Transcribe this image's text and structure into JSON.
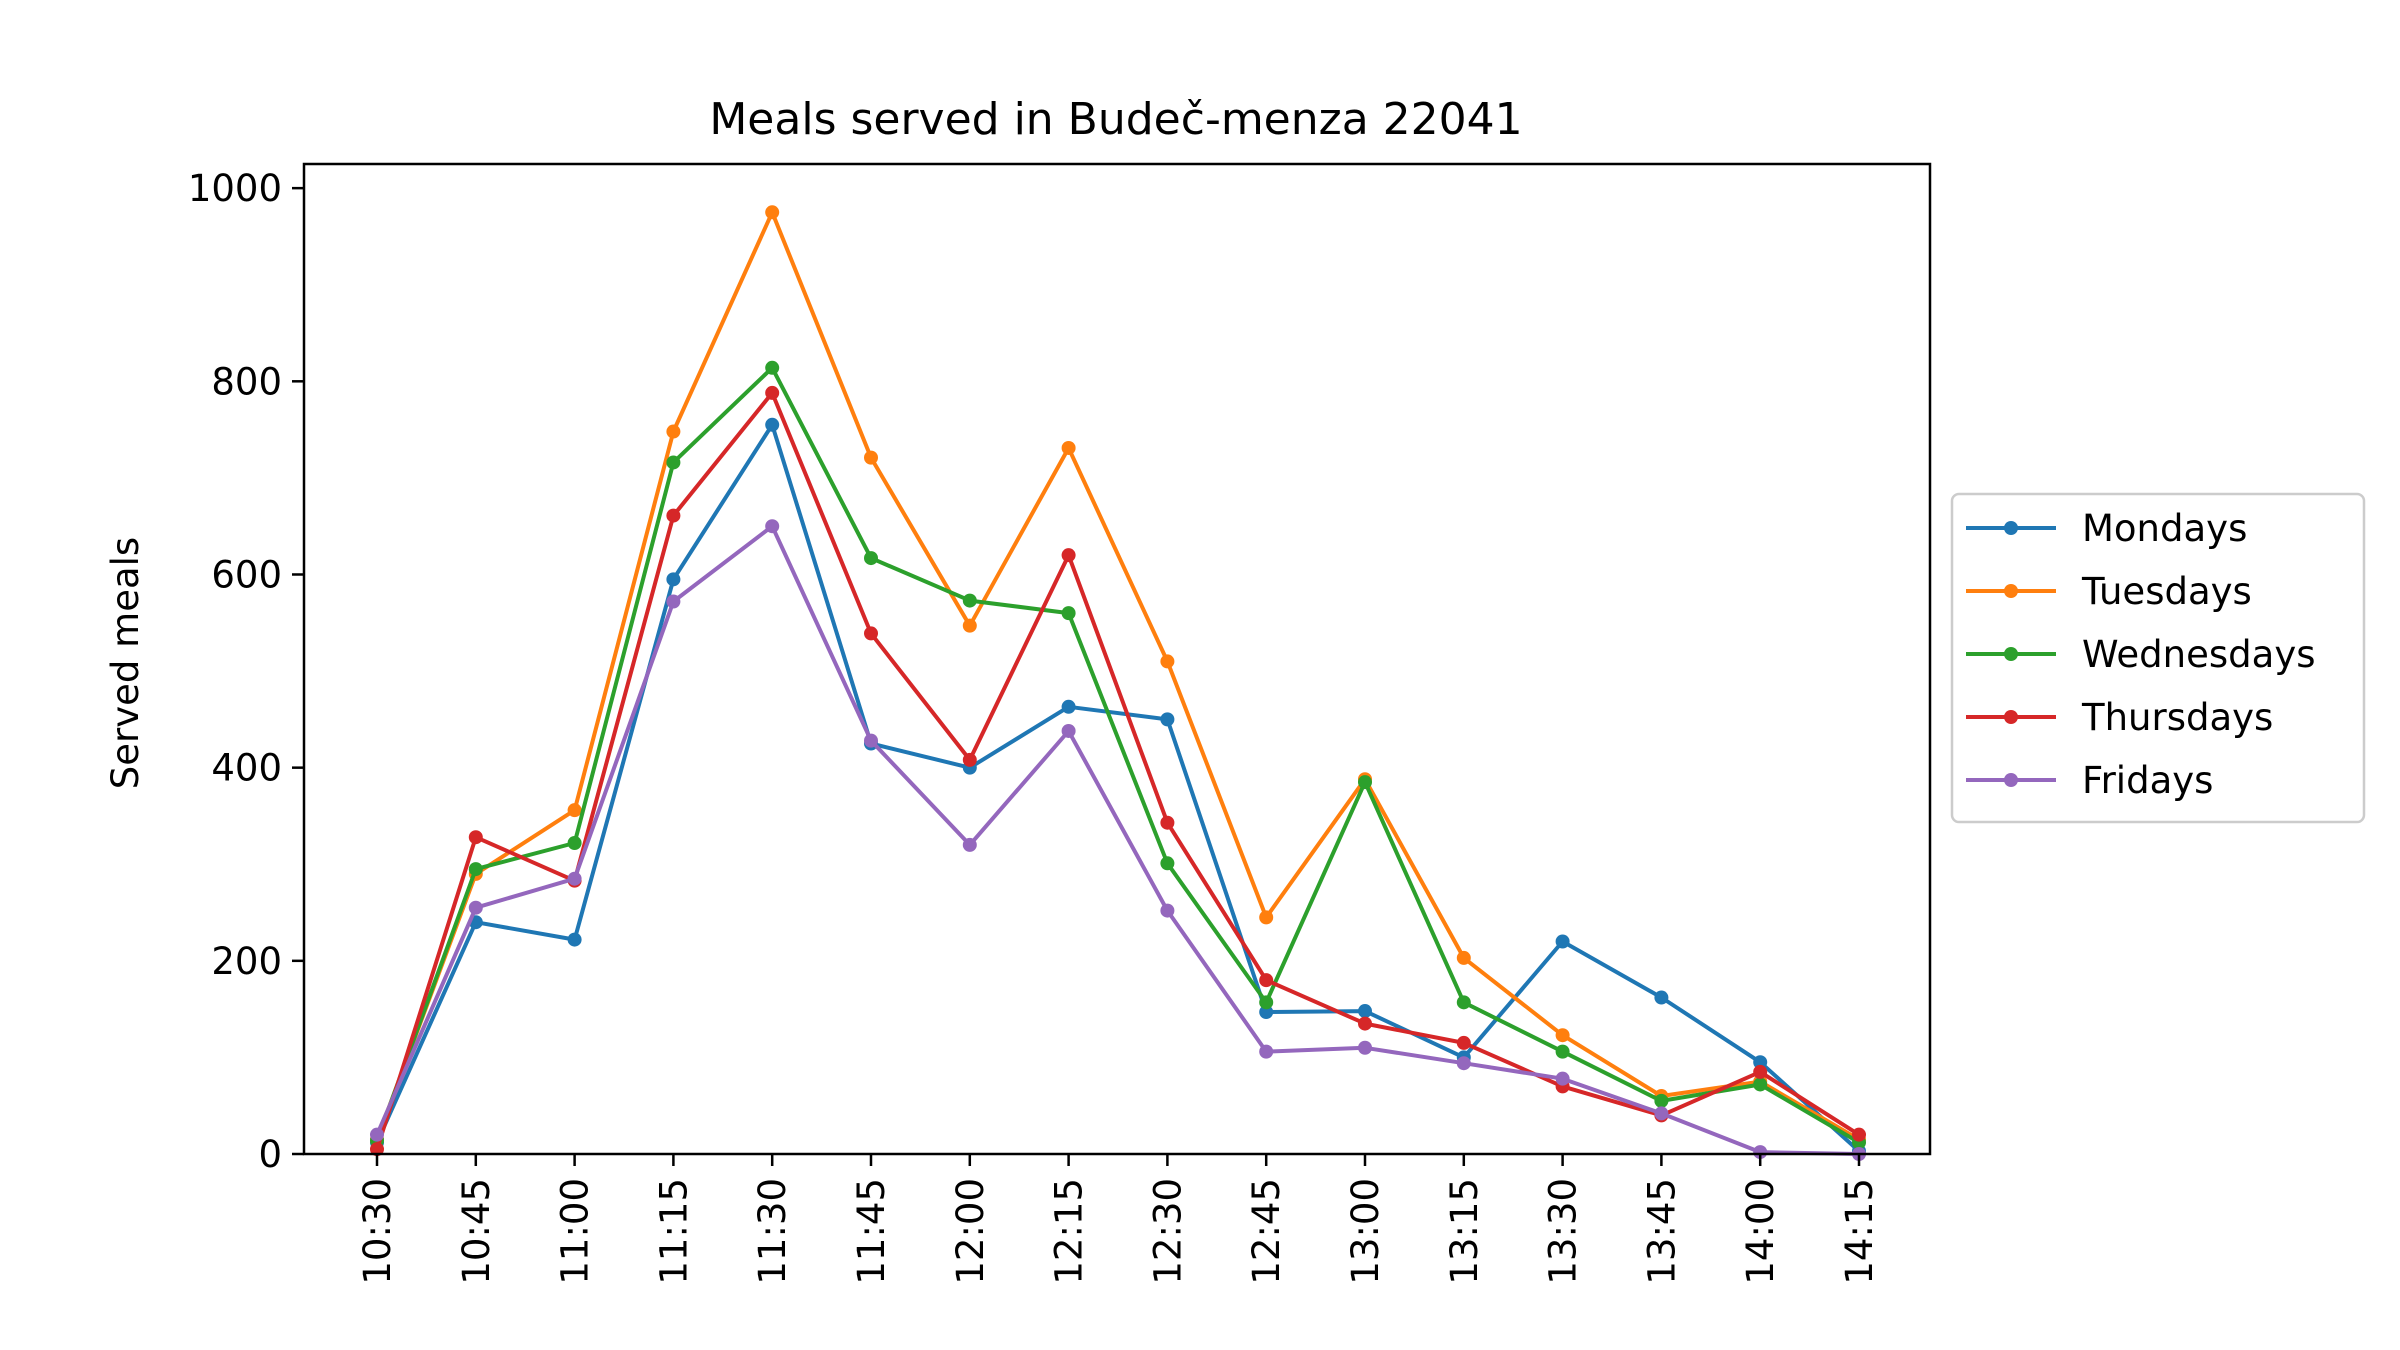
{
  "chart_data": {
    "type": "line",
    "title": "Meals served in Budeč-menza 22041",
    "xlabel": "",
    "ylabel": "Served meals",
    "categories": [
      "10:30",
      "10:45",
      "11:00",
      "11:15",
      "11:30",
      "11:45",
      "12:00",
      "12:15",
      "12:30",
      "12:45",
      "13:00",
      "13:15",
      "13:30",
      "13:45",
      "14:00",
      "14:15"
    ],
    "ylim": [
      0,
      1025
    ],
    "yticks": [
      0,
      200,
      400,
      600,
      800,
      1000
    ],
    "grid": false,
    "legend_position": "center-right outside",
    "series": [
      {
        "name": "Mondays",
        "color": "#1f77b4",
        "values": [
          12,
          240,
          222,
          595,
          755,
          425,
          400,
          463,
          450,
          147,
          148,
          100,
          220,
          162,
          95,
          3
        ]
      },
      {
        "name": "Tuesdays",
        "color": "#ff7f0e",
        "values": [
          15,
          290,
          356,
          748,
          975,
          721,
          547,
          731,
          510,
          245,
          388,
          203,
          123,
          60,
          75,
          15
        ]
      },
      {
        "name": "Wednesdays",
        "color": "#2ca02c",
        "values": [
          14,
          295,
          322,
          716,
          814,
          617,
          573,
          560,
          301,
          157,
          385,
          157,
          106,
          55,
          72,
          12
        ]
      },
      {
        "name": "Thursdays",
        "color": "#d62728",
        "values": [
          5,
          328,
          283,
          661,
          788,
          539,
          408,
          620,
          343,
          180,
          135,
          115,
          70,
          40,
          85,
          20
        ]
      },
      {
        "name": "Fridays",
        "color": "#9467bd",
        "values": [
          20,
          255,
          285,
          572,
          650,
          428,
          320,
          438,
          252,
          106,
          110,
          94,
          78,
          42,
          2,
          0
        ]
      }
    ]
  }
}
